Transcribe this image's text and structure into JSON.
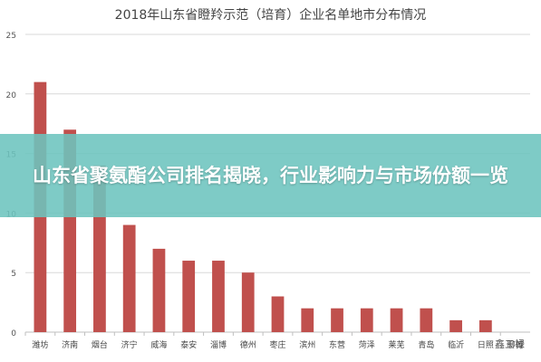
{
  "chart_data": {
    "type": "bar",
    "title": "2018年山东省瞪羚示范（培育）企业名单地市分布情况",
    "categories": [
      "潍坊",
      "济南",
      "烟台",
      "济宁",
      "威海",
      "泰安",
      "淄博",
      "德州",
      "枣庄",
      "滨州",
      "东营",
      "菏泽",
      "莱芜",
      "青岛",
      "临沂",
      "日照",
      "聊城"
    ],
    "values": [
      21,
      17,
      14,
      9,
      7,
      6,
      6,
      5,
      3,
      2,
      2,
      2,
      2,
      2,
      1,
      1,
      0
    ],
    "ylim": [
      0,
      25
    ],
    "yticks": [
      0,
      5,
      10,
      15,
      20,
      25
    ],
    "xlabel": "",
    "ylabel": "",
    "grid": true,
    "bar_color": "#c0504d"
  },
  "banner": {
    "title": "山东省聚氨酯公司排名揭晓，行业影响力与市场份额一览"
  },
  "source": "鑫三禄"
}
